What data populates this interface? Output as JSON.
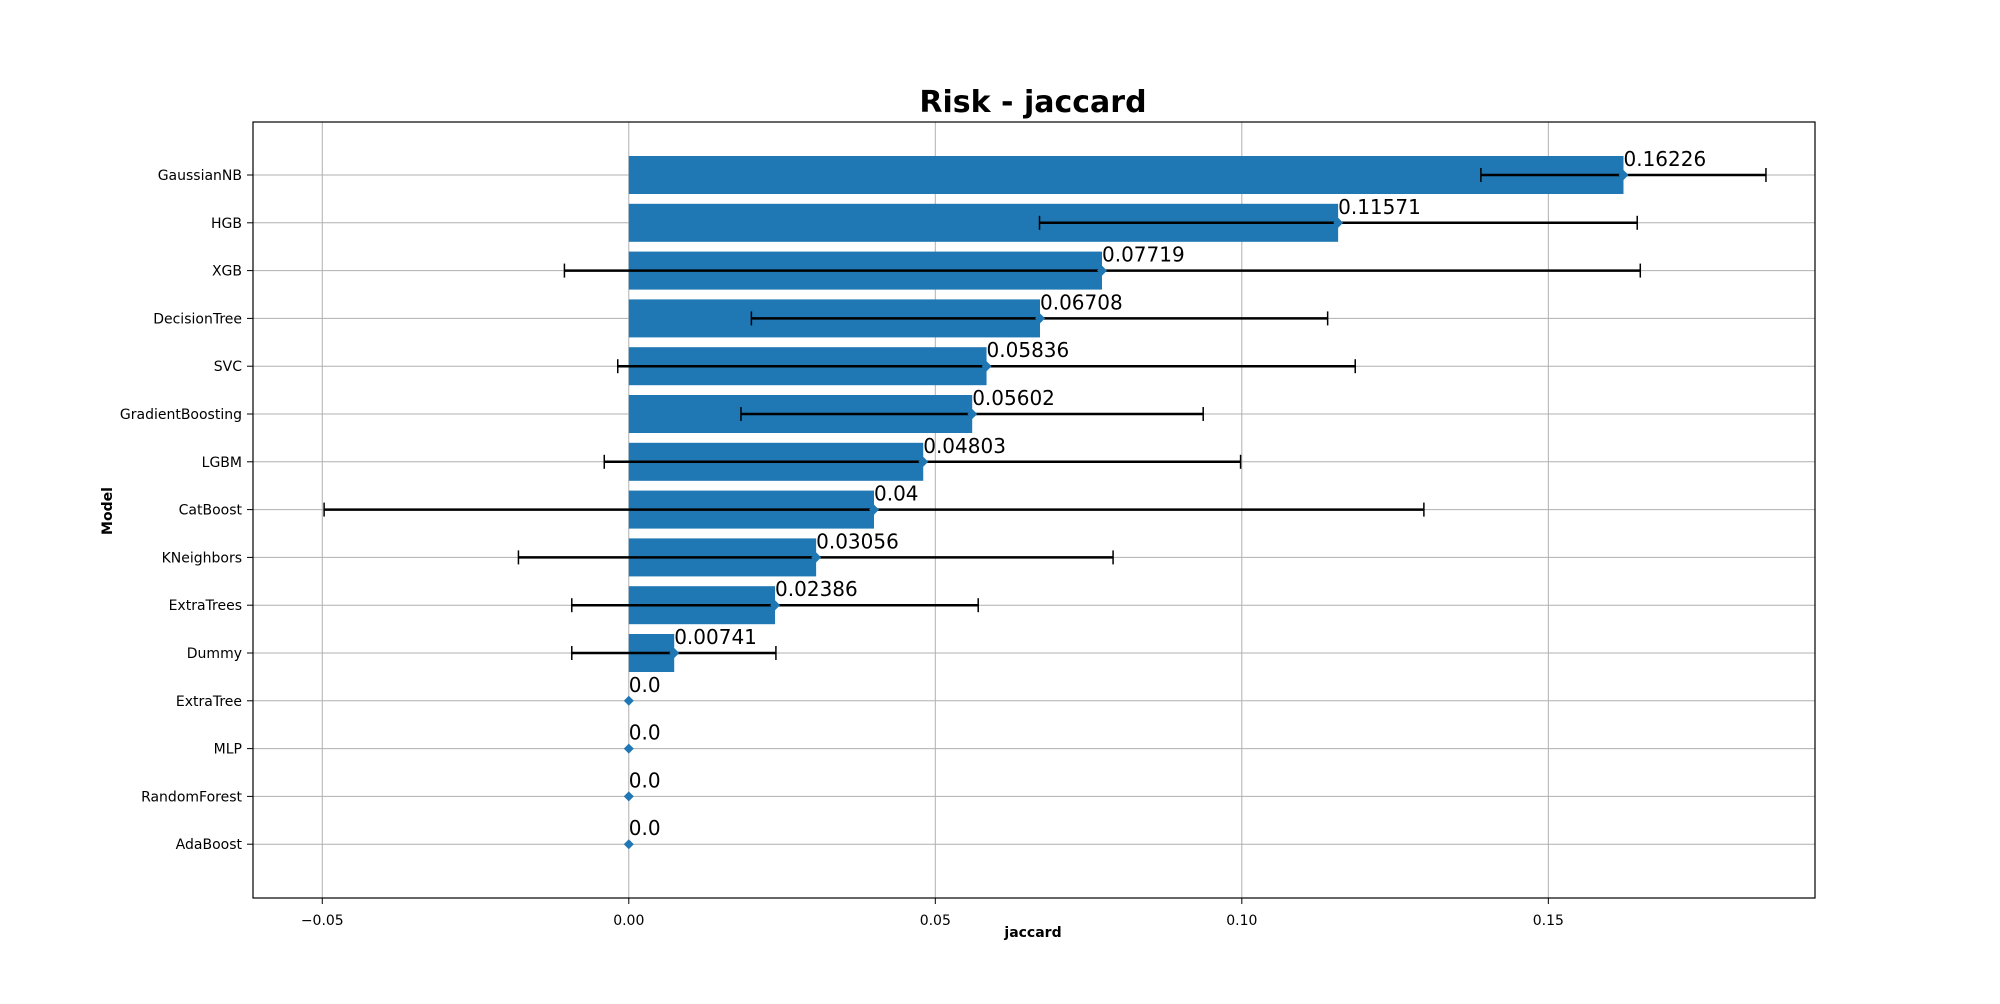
{
  "chart_data": {
    "type": "bar",
    "orientation": "horizontal",
    "title": "Risk - jaccard",
    "xlabel": "jaccard",
    "ylabel": "Model",
    "xlim": [
      -0.0613,
      0.1935
    ],
    "xticks": [
      -0.05,
      0.0,
      0.05,
      0.1,
      0.15
    ],
    "xtick_labels": [
      "−0.05",
      "0.00",
      "0.05",
      "0.10",
      "0.15"
    ],
    "grid": true,
    "bar_color": "#1f77b4",
    "errorbar_color": "#000000",
    "categories": [
      "GaussianNB",
      "HGB",
      "XGB",
      "DecisionTree",
      "SVC",
      "GradientBoosting",
      "LGBM",
      "CatBoost",
      "KNeighbors",
      "ExtraTrees",
      "Dummy",
      "ExtraTree",
      "MLP",
      "RandomForest",
      "AdaBoost"
    ],
    "values": [
      0.16226,
      0.11571,
      0.07719,
      0.06708,
      0.05836,
      0.05602,
      0.04803,
      0.04,
      0.03056,
      0.02386,
      0.00741,
      0.0,
      0.0,
      0.0,
      0.0
    ],
    "value_labels": [
      "0.16226",
      "0.11571",
      "0.07719",
      "0.06708",
      "0.05836",
      "0.05602",
      "0.04803",
      "0.04",
      "0.03056",
      "0.02386",
      "0.00741",
      "0.0",
      "0.0",
      "0.0",
      "0.0"
    ],
    "error_low": [
      0.139,
      0.067,
      -0.0105,
      0.02,
      -0.0018,
      0.0183,
      -0.004,
      -0.0497,
      -0.018,
      -0.0093,
      -0.0093,
      null,
      null,
      null,
      null
    ],
    "error_high": [
      0.1855,
      0.1645,
      0.165,
      0.114,
      0.1185,
      0.0937,
      0.0998,
      0.1297,
      0.079,
      0.057,
      0.024,
      null,
      null,
      null,
      null
    ]
  }
}
